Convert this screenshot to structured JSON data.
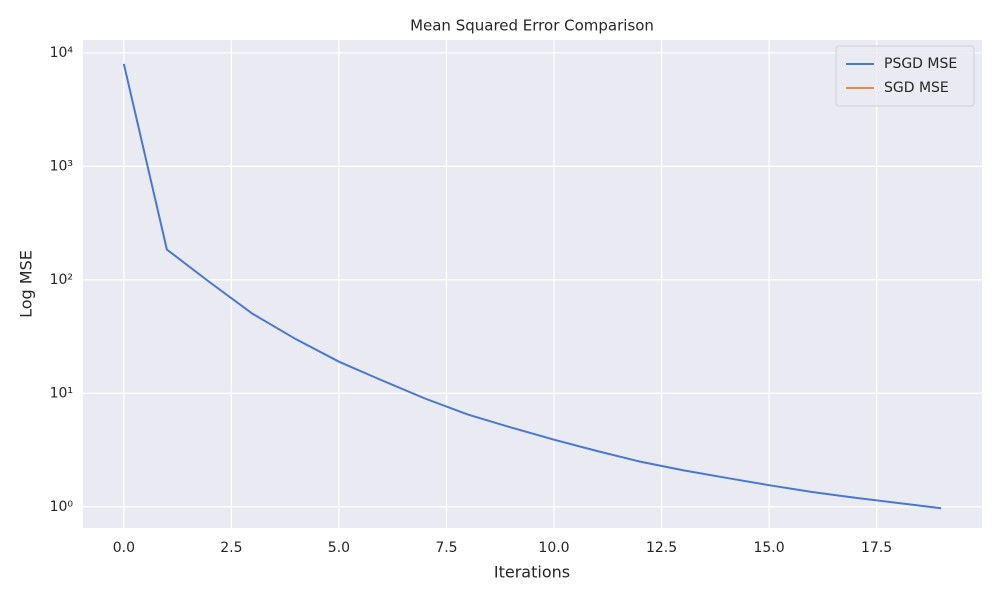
{
  "chart_data": {
    "type": "line",
    "title": "Mean Squared Error Comparison",
    "xlabel": "Iterations",
    "ylabel": "Log MSE",
    "x": [
      0,
      1,
      2,
      3,
      4,
      5,
      6,
      7,
      8,
      9,
      10,
      11,
      12,
      13,
      14,
      15,
      16,
      17,
      18,
      19
    ],
    "series": [
      {
        "name": "PSGD MSE",
        "color": "#4878d0",
        "values": [
          8000,
          185,
          95,
          50,
          30,
          19,
          13,
          9,
          6.5,
          5,
          3.9,
          3.1,
          2.5,
          2.1,
          1.8,
          1.55,
          1.35,
          1.2,
          1.08,
          0.97
        ]
      },
      {
        "name": "SGD MSE",
        "color": "#ee854a",
        "values": [
          null,
          null,
          null,
          null,
          null,
          null,
          null,
          null,
          null,
          null,
          null,
          null,
          null,
          null,
          null,
          null,
          null,
          null,
          null,
          null
        ]
      }
    ],
    "xlim": [
      -0.95,
      19.95
    ],
    "xticks": [
      {
        "value": 0,
        "label": "0.0"
      },
      2.5,
      {
        "value": 5,
        "label": "5.0"
      },
      7.5,
      {
        "value": 10,
        "label": "10.0"
      },
      12.5,
      {
        "value": 15,
        "label": "15.0"
      },
      17.5
    ],
    "ylim": [
      0.65,
      13000
    ],
    "yscale": "log",
    "yticks": [
      {
        "value": 1,
        "label": "10⁰"
      },
      {
        "value": 10,
        "label": "10¹"
      },
      {
        "value": 100,
        "label": "10²"
      },
      {
        "value": 1000,
        "label": "10³"
      },
      {
        "value": 10000,
        "label": "10⁴"
      }
    ],
    "grid": true,
    "legend": "upper right"
  }
}
